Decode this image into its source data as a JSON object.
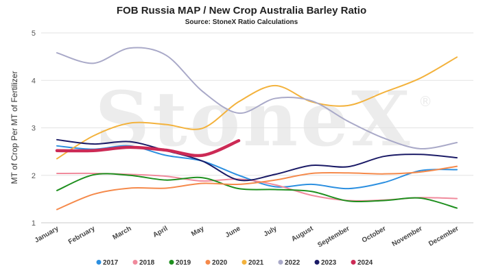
{
  "chart_data": {
    "type": "line",
    "title": "FOB Russia MAP / New Crop Australia Barley Ratio",
    "subtitle": "Source: StoneX Ratio Calculations",
    "watermark": "StoneX",
    "watermark_mark": "®",
    "ylabel": "MT of Crop Per MT of Fertilizer",
    "xlabel": "",
    "ylim": [
      1,
      5
    ],
    "yticks": [
      "1",
      "2",
      "3",
      "4",
      "5"
    ],
    "grid": true,
    "legend_position": "bottom",
    "categories": [
      "January",
      "February",
      "March",
      "April",
      "May",
      "June",
      "July",
      "August",
      "September",
      "October",
      "November",
      "December"
    ],
    "series": [
      {
        "name": "2017",
        "color": "#2b8fe0",
        "values": [
          2.62,
          2.55,
          2.62,
          2.42,
          2.3,
          2.0,
          1.76,
          1.81,
          1.72,
          1.85,
          2.1,
          2.12
        ]
      },
      {
        "name": "2018",
        "color": "#f08a9c",
        "values": [
          2.04,
          2.04,
          2.02,
          1.98,
          1.88,
          1.92,
          1.8,
          1.58,
          1.47,
          1.48,
          1.53,
          1.51
        ]
      },
      {
        "name": "2019",
        "color": "#1e8f1e",
        "values": [
          1.68,
          2.01,
          2.0,
          1.9,
          1.95,
          1.72,
          1.7,
          1.66,
          1.46,
          1.47,
          1.52,
          1.31
        ]
      },
      {
        "name": "2020",
        "color": "#f5894a",
        "values": [
          1.28,
          1.6,
          1.73,
          1.73,
          1.83,
          1.81,
          1.9,
          2.04,
          2.05,
          2.03,
          2.07,
          2.19
        ]
      },
      {
        "name": "2021",
        "color": "#f3b23c",
        "values": [
          2.35,
          2.83,
          3.1,
          3.07,
          2.99,
          3.55,
          3.89,
          3.55,
          3.47,
          3.75,
          4.05,
          4.49
        ]
      },
      {
        "name": "2022",
        "color": "#a9a9c8",
        "values": [
          4.58,
          4.36,
          4.68,
          4.53,
          3.77,
          3.31,
          3.62,
          3.57,
          3.14,
          2.78,
          2.56,
          2.69
        ]
      },
      {
        "name": "2023",
        "color": "#1a1a66",
        "values": [
          2.75,
          2.66,
          2.71,
          2.52,
          2.3,
          1.9,
          2.02,
          2.21,
          2.18,
          2.4,
          2.44,
          2.37
        ]
      },
      {
        "name": "2024",
        "color": "#cc2a55",
        "values": [
          2.52,
          2.52,
          2.59,
          2.53,
          2.42,
          2.73,
          null,
          null,
          null,
          null,
          null,
          null
        ]
      }
    ]
  }
}
